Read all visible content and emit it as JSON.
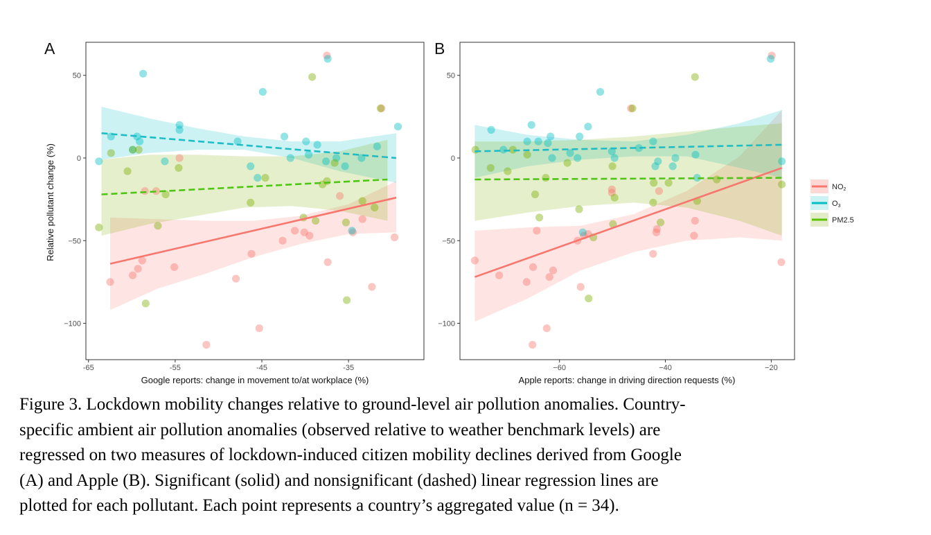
{
  "chart_data": [
    {
      "type": "scatter",
      "panel_label": "A",
      "xlabel": "Google reports: change in movement to/at workplace (%)",
      "ylabel": "Relative pollutant change (%)",
      "xlim": [
        -65.3,
        -26.3
      ],
      "ylim": [
        -122,
        70
      ],
      "x_ticks": [
        -65,
        -55,
        -45,
        -35
      ],
      "x_tick_labels": [
        "-65",
        "-55",
        "-45",
        "-35"
      ],
      "y_ticks": [
        -100,
        -50,
        0,
        50
      ],
      "y_tick_labels": [
        "−100",
        "−50",
        "0",
        "50"
      ],
      "series": [
        {
          "name": "NO2",
          "color": "#f8766d",
          "significant": true,
          "fit": {
            "x": [
              -62.5,
              -29.5
            ],
            "y": [
              -64,
              -24
            ]
          },
          "ci": {
            "x": [
              -62.5,
              -57,
              -51.5,
              -46,
              -40.5,
              -35,
              -29.5
            ],
            "upper": [
              -36,
              -37,
              -38,
              -38,
              -35,
              -28,
              -14
            ],
            "lower": [
              -92,
              -79,
              -70,
              -60,
              -52,
              -46,
              -45
            ]
          },
          "points": [
            [
              -51.4,
              -113
            ],
            [
              -45.3,
              -103
            ],
            [
              -58.8,
              -62
            ],
            [
              -59.3,
              -67
            ],
            [
              -59.9,
              -71
            ],
            [
              -62.5,
              -75
            ],
            [
              -55.1,
              -66
            ],
            [
              -57.2,
              -20
            ],
            [
              -58.5,
              -20
            ],
            [
              -46.2,
              -58
            ],
            [
              -48.0,
              -73
            ],
            [
              -42.6,
              -50
            ],
            [
              -41.2,
              -44
            ],
            [
              -40.1,
              -45
            ],
            [
              -39.5,
              -47
            ],
            [
              -37.4,
              -63
            ],
            [
              -33.4,
              -37
            ],
            [
              -32.3,
              -78
            ],
            [
              -37.5,
              62
            ],
            [
              -54.5,
              0
            ],
            [
              -36.0,
              -23
            ],
            [
              -34.5,
              -45
            ],
            [
              -31.2,
              30
            ],
            [
              -29.7,
              -48
            ]
          ]
        },
        {
          "name": "O3",
          "color": "#00bfc4",
          "significant": false,
          "fit": {
            "x": [
              -63.5,
              -29.5
            ],
            "y": [
              15,
              0
            ]
          },
          "ci": {
            "x": [
              -63.5,
              -58,
              -52.5,
              -47,
              -41.5,
              -36,
              -29.5
            ],
            "upper": [
              31,
              24,
              18,
              13,
              10,
              10,
              15
            ],
            "lower": [
              -1,
              3,
              5,
              5,
              0,
              -8,
              -15
            ]
          },
          "points": [
            [
              -58.7,
              51
            ],
            [
              -44.9,
              40
            ],
            [
              -37.4,
              60
            ],
            [
              -29.3,
              19
            ],
            [
              -54.5,
              17
            ],
            [
              -54.5,
              20
            ],
            [
              -59.4,
              13
            ],
            [
              -59.1,
              10
            ],
            [
              -62.4,
              13
            ],
            [
              -59.9,
              5
            ],
            [
              -47.8,
              10
            ],
            [
              -42.4,
              13
            ],
            [
              -41.7,
              0
            ],
            [
              -39.9,
              10
            ],
            [
              -38.6,
              8
            ],
            [
              -37.6,
              -2
            ],
            [
              -36.4,
              0
            ],
            [
              -35.4,
              -5
            ],
            [
              -33.5,
              0
            ],
            [
              -31.7,
              7
            ],
            [
              -46.3,
              -5
            ],
            [
              -45.5,
              -12
            ],
            [
              -63.8,
              -2
            ],
            [
              -56.2,
              -2
            ],
            [
              -34.6,
              -44
            ],
            [
              -39.6,
              2
            ]
          ]
        },
        {
          "name": "PM2.5",
          "color": "#7cae00",
          "significant": false,
          "fit": {
            "x": [
              -63.5,
              -30.5
            ],
            "y": [
              -22,
              -13
            ]
          },
          "ci": {
            "x": [
              -63.5,
              -58,
              -52.5,
              -47,
              -41.5,
              -36,
              -30.5
            ],
            "upper": [
              -1,
              2,
              2,
              1,
              1,
              4,
              11
            ],
            "lower": [
              -47,
              -40,
              -35,
              -30,
              -29,
              -32,
              -38
            ]
          },
          "points": [
            [
              -58.4,
              -88
            ],
            [
              -63.8,
              -42
            ],
            [
              -60.5,
              -8
            ],
            [
              -59.2,
              5
            ],
            [
              -59.9,
              5
            ],
            [
              -57.0,
              -41
            ],
            [
              -56.1,
              -22
            ],
            [
              -54.6,
              -6
            ],
            [
              -46.3,
              -27
            ],
            [
              -39.2,
              49
            ],
            [
              -40.2,
              -36
            ],
            [
              -38.8,
              -38
            ],
            [
              -38.0,
              -16
            ],
            [
              -35.3,
              -39
            ],
            [
              -35.2,
              -86
            ],
            [
              -33.4,
              -26
            ],
            [
              -31.3,
              30
            ],
            [
              -36.6,
              -3
            ],
            [
              -44.6,
              -12
            ],
            [
              -32.0,
              -30
            ],
            [
              -62.4,
              3
            ],
            [
              -37.5,
              -14
            ]
          ]
        }
      ]
    },
    {
      "type": "scatter",
      "panel_label": "B",
      "xlabel": "Apple reports: change in driving direction requests (%)",
      "ylabel": "",
      "xlim": [
        -78.8,
        -15.6
      ],
      "ylim": [
        -122,
        70
      ],
      "x_ticks": [
        -60,
        -40,
        -20
      ],
      "x_tick_labels": [
        "−60",
        "−40",
        "−20"
      ],
      "y_ticks": [
        -100,
        -50,
        0,
        50
      ],
      "y_tick_labels": [
        "−100",
        "−50",
        "0",
        "50"
      ],
      "series": [
        {
          "name": "NO2",
          "color": "#f8766d",
          "significant": true,
          "fit": {
            "x": [
              -76,
              -18
            ],
            "y": [
              -72,
              -6
            ]
          },
          "ci": {
            "x": [
              -76,
              -66,
              -56,
              -46,
              -36,
              -26,
              -18
            ],
            "upper": [
              -44,
              -42,
              -41,
              -34,
              -20,
              1,
              29
            ],
            "lower": [
              -99,
              -85,
              -68,
              -57,
              -50,
              -48,
              -50
            ]
          },
          "points": [
            [
              -76.0,
              -62
            ],
            [
              -71.4,
              -71
            ],
            [
              -66.2,
              -75
            ],
            [
              -65.1,
              -113
            ],
            [
              -65.0,
              -66
            ],
            [
              -62.4,
              -103
            ],
            [
              -61.9,
              -72
            ],
            [
              -61.2,
              -68
            ],
            [
              -64.3,
              -44
            ],
            [
              -56.6,
              -50
            ],
            [
              -56.0,
              -78
            ],
            [
              -55.4,
              -47
            ],
            [
              -54.6,
              -46
            ],
            [
              -50.1,
              -21
            ],
            [
              -50.1,
              -19
            ],
            [
              -42.3,
              -58
            ],
            [
              -41.7,
              -45
            ],
            [
              -41.6,
              -43
            ],
            [
              -34.6,
              -47
            ],
            [
              -34.4,
              -38
            ],
            [
              -18.1,
              -63
            ],
            [
              -19.9,
              62
            ],
            [
              -41.2,
              -20
            ],
            [
              -46.5,
              30
            ]
          ]
        },
        {
          "name": "O3",
          "color": "#00bfc4",
          "significant": false,
          "fit": {
            "x": [
              -76,
              -18
            ],
            "y": [
              4,
              8
            ]
          },
          "ci": {
            "x": [
              -76,
              -66,
              -56,
              -46,
              -36,
              -26,
              -18
            ],
            "upper": [
              20,
              14,
              11,
              10,
              14,
              21,
              29
            ],
            "lower": [
              -12,
              -5,
              -1,
              1,
              1,
              -6,
              -12
            ]
          },
          "points": [
            [
              -72.9,
              17
            ],
            [
              -70.6,
              5
            ],
            [
              -66.1,
              10
            ],
            [
              -65.3,
              20
            ],
            [
              -64.0,
              10
            ],
            [
              -62.2,
              9
            ],
            [
              -61.7,
              13
            ],
            [
              -61.4,
              0
            ],
            [
              -58.0,
              3
            ],
            [
              -56.2,
              13
            ],
            [
              -54.6,
              19
            ],
            [
              -52.3,
              40
            ],
            [
              -50.1,
              4
            ],
            [
              -49.6,
              0
            ],
            [
              -42.3,
              10
            ],
            [
              -41.9,
              -5
            ],
            [
              -41.4,
              -2
            ],
            [
              -38.6,
              -5
            ],
            [
              -38.1,
              0
            ],
            [
              -34.3,
              2
            ],
            [
              -34.0,
              -12
            ],
            [
              -20.1,
              60
            ],
            [
              -18.0,
              -2
            ],
            [
              -56.6,
              0
            ],
            [
              -55.6,
              -45
            ],
            [
              -45.0,
              6
            ]
          ]
        },
        {
          "name": "PM2.5",
          "color": "#7cae00",
          "significant": false,
          "fit": {
            "x": [
              -76,
              -18
            ],
            "y": [
              -13,
              -12
            ]
          },
          "ci": {
            "x": [
              -76,
              -66,
              -56,
              -46,
              -36,
              -26,
              -18
            ],
            "upper": [
              10,
              10,
              11,
              13,
              16,
              19,
              21
            ],
            "lower": [
              -38,
              -33,
              -29,
              -27,
              -30,
              -38,
              -47
            ]
          },
          "points": [
            [
              -75.9,
              5
            ],
            [
              -73.0,
              -6
            ],
            [
              -69.8,
              -8
            ],
            [
              -66.1,
              2
            ],
            [
              -64.6,
              -22
            ],
            [
              -63.8,
              -36
            ],
            [
              -62.6,
              -12
            ],
            [
              -56.3,
              -31
            ],
            [
              -54.5,
              -85
            ],
            [
              -53.6,
              -48
            ],
            [
              -50.0,
              -5
            ],
            [
              -49.6,
              -24
            ],
            [
              -49.9,
              -40
            ],
            [
              -42.3,
              -27
            ],
            [
              -42.2,
              -15
            ],
            [
              -40.9,
              -39
            ],
            [
              -34.4,
              49
            ],
            [
              -34.0,
              -26
            ],
            [
              -46.2,
              30
            ],
            [
              -39.4,
              -15
            ],
            [
              -18.0,
              -16
            ],
            [
              -58.5,
              -3
            ],
            [
              -68.8,
              5
            ],
            [
              -30.3,
              -13
            ]
          ]
        }
      ]
    }
  ],
  "legend": {
    "no2_prefix": "NO",
    "no2_sub": "2",
    "o3_prefix": "O",
    "o3_sub": "3",
    "pm25": "PM2.5"
  },
  "caption": {
    "lines": [
      "Figure 3. Lockdown mobility changes relative to ground-level air pollution anomalies. Country-",
      "specific ambient air pollution anomalies (observed relative to weather benchmark levels) are",
      "regressed on two measures of lockdown-induced citizen mobility declines derived from Google",
      "(A) and Apple (B). Significant (solid) and nonsignificant (dashed) linear regression lines are",
      "plotted for each pollutant. Each point represents a country’s aggregated value (n = 34)."
    ]
  }
}
